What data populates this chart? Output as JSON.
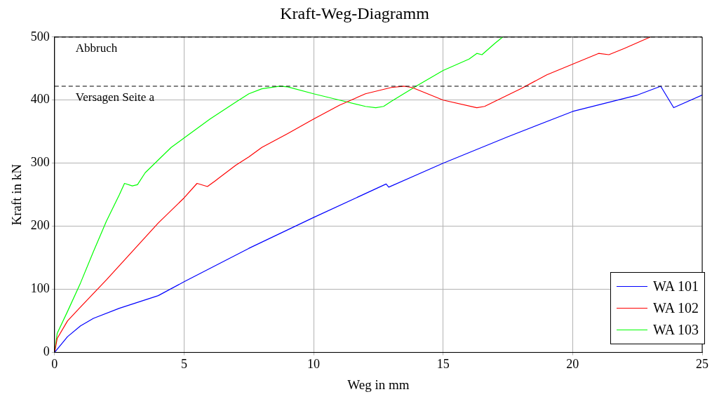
{
  "chart_data": {
    "type": "line",
    "title": "Kraft-Weg-Diagramm",
    "xlabel": "Weg in mm",
    "ylabel": "Kraft in kN",
    "xlim": [
      0,
      25
    ],
    "xticks": [
      0,
      5,
      10,
      15,
      20,
      25
    ],
    "ylim": [
      0,
      500
    ],
    "yticks": [
      0,
      100,
      200,
      300,
      400,
      500
    ],
    "grid": true,
    "legend": "bottom right",
    "marker": "none",
    "line_style": "solid",
    "ref_lines": [
      {
        "axis": "y",
        "value": 500,
        "label": "Abbruch",
        "color": "#000000",
        "line_style": "dashed"
      },
      {
        "axis": "y",
        "value": 422,
        "label": "Versagen Seite a",
        "color": "#000000",
        "line_style": "dashed"
      }
    ],
    "series": [
      {
        "name": "WA 101",
        "color": "#0000ff",
        "x": [
          0,
          0.5,
          1,
          1.5,
          2.5,
          4,
          5,
          7.5,
          10,
          12.8,
          12.9,
          15,
          17.5,
          20,
          22.5,
          23.4,
          23.9,
          25
        ],
        "values": [
          0,
          25,
          42,
          54,
          70,
          90,
          112,
          165,
          214,
          267,
          262,
          300,
          342,
          382,
          408,
          422,
          388,
          408
        ]
      },
      {
        "name": "WA 102",
        "color": "#ff0000",
        "x": [
          0,
          0.1,
          0.5,
          1,
          2,
          3,
          4,
          5,
          5.5,
          5.9,
          6.2,
          7,
          7.5,
          8,
          9,
          10,
          11,
          12,
          13,
          13.5,
          13.8,
          15,
          16.3,
          16.6,
          17,
          18,
          19,
          20,
          21,
          21.4,
          22,
          23
        ],
        "values": [
          0,
          22,
          50,
          72,
          115,
          160,
          205,
          245,
          268,
          263,
          272,
          297,
          310,
          325,
          347,
          370,
          392,
          410,
          420,
          422,
          420,
          400,
          388,
          390,
          398,
          418,
          440,
          457,
          474,
          472,
          482,
          500
        ]
      },
      {
        "name": "WA 103",
        "color": "#00ff00",
        "x": [
          0,
          0.1,
          0.5,
          1,
          1.5,
          2,
          2.5,
          2.7,
          3,
          3.2,
          3.5,
          4,
          4.5,
          5,
          6,
          7,
          7.5,
          8,
          8.7,
          9,
          10,
          11,
          12,
          12.4,
          12.7,
          13,
          14,
          15,
          16,
          16.3,
          16.5,
          17,
          17.3
        ],
        "values": [
          0,
          30,
          65,
          110,
          160,
          208,
          250,
          268,
          264,
          266,
          285,
          305,
          325,
          340,
          370,
          397,
          410,
          418,
          422,
          421,
          410,
          400,
          390,
          388,
          390,
          398,
          423,
          447,
          465,
          474,
          472,
          490,
          500
        ]
      }
    ]
  }
}
